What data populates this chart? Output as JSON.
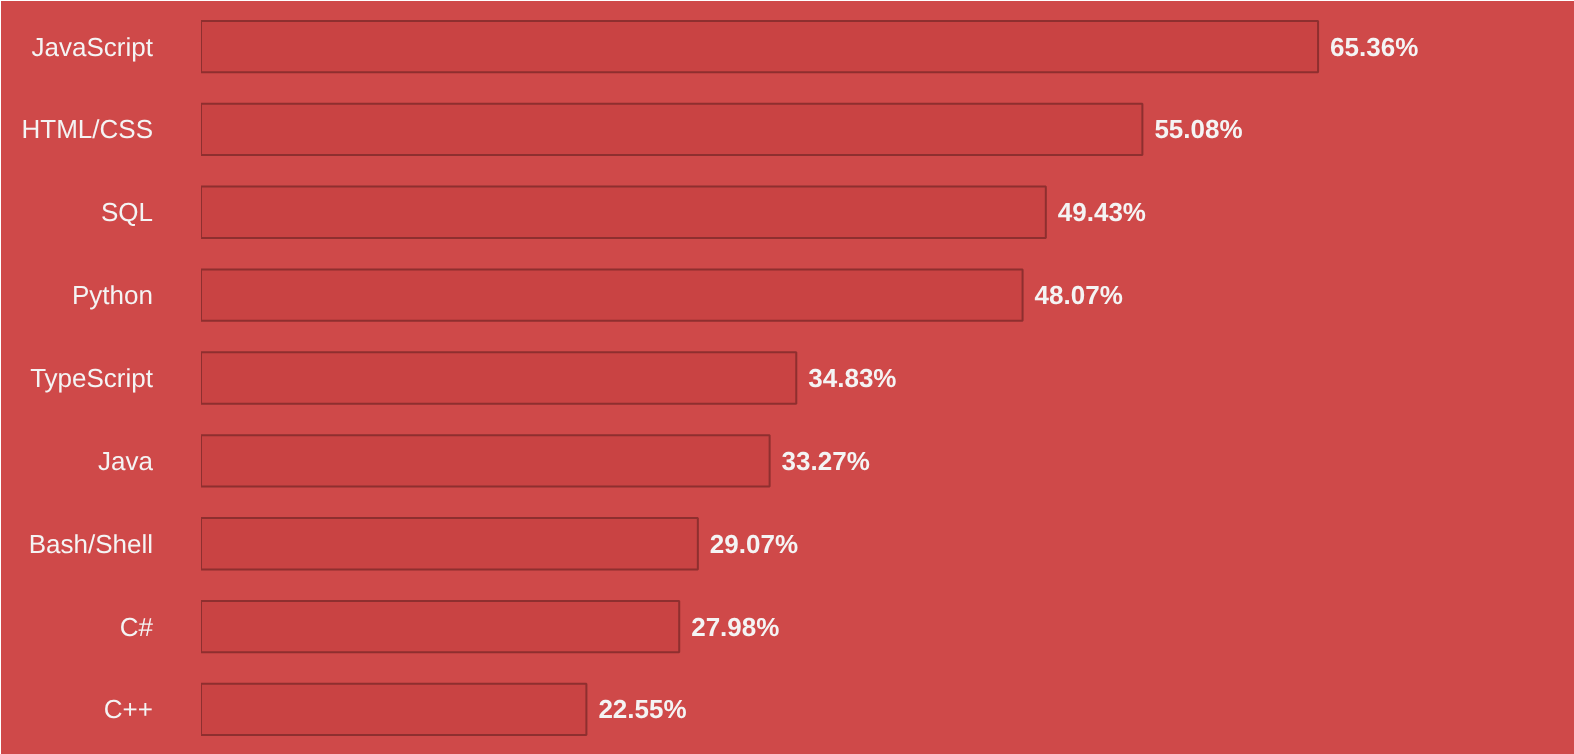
{
  "chart_data": {
    "type": "bar",
    "orientation": "horizontal",
    "categories": [
      "JavaScript",
      "HTML/CSS",
      "SQL",
      "Python",
      "TypeScript",
      "Java",
      "Bash/Shell",
      "C#",
      "C++"
    ],
    "values": [
      65.36,
      55.08,
      49.43,
      48.07,
      34.83,
      33.27,
      29.07,
      27.98,
      22.55
    ],
    "value_labels": [
      "65.36%",
      "55.08%",
      "49.43%",
      "48.07%",
      "34.83%",
      "33.27%",
      "29.07%",
      "27.98%",
      "22.55%"
    ],
    "color": "#c94343",
    "grid": false
  }
}
